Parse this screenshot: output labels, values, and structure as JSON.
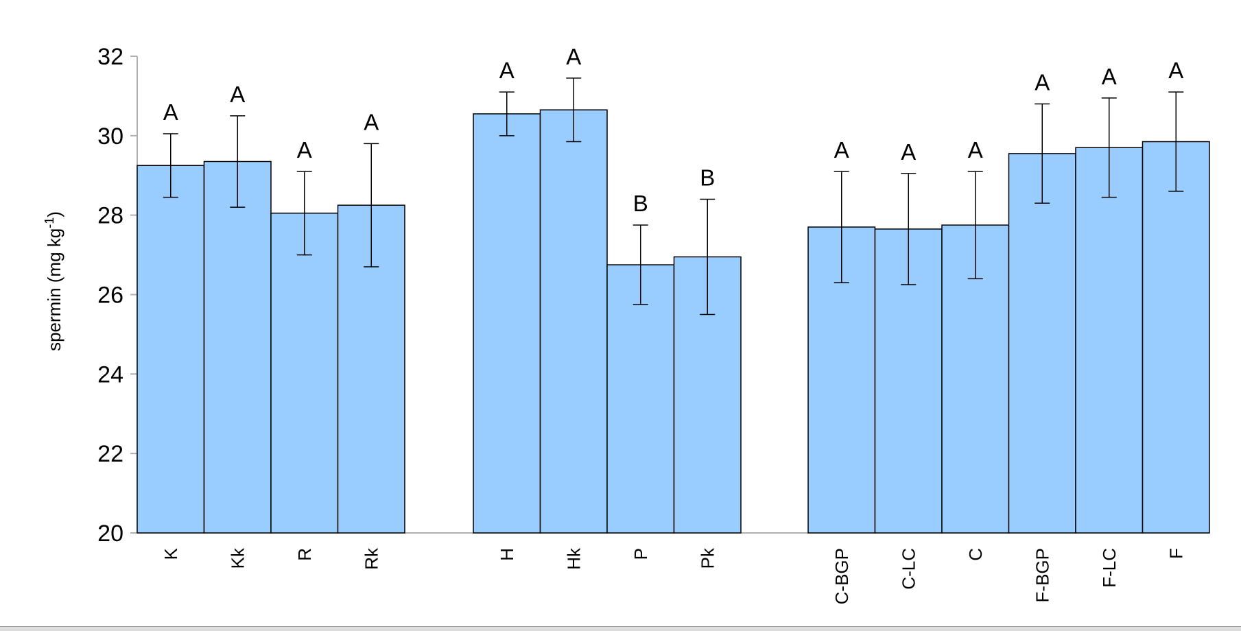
{
  "chart_data": {
    "type": "bar",
    "ylabel": "spermin (mg kg",
    "ylabel_sup": "-1",
    "ylabel_suffix": ")",
    "ylim": [
      20,
      32
    ],
    "yticks": [
      20,
      22,
      24,
      26,
      28,
      30,
      32
    ],
    "ytick_labels": [
      "20",
      "22",
      "24",
      "26",
      "28",
      "30",
      "32"
    ],
    "grid": false,
    "bar_color": "#99ccff",
    "groups": [
      {
        "categories": [
          "K",
          "Kk",
          "R",
          "Rk"
        ],
        "values": [
          29.25,
          29.35,
          28.05,
          28.25
        ],
        "errors": [
          0.8,
          1.15,
          1.05,
          1.55
        ],
        "letters": [
          "A",
          "A",
          "A",
          "A"
        ]
      },
      {
        "categories": [
          "H",
          "Hk",
          "P",
          "Pk"
        ],
        "values": [
          30.55,
          30.65,
          26.75,
          26.95
        ],
        "errors": [
          0.55,
          0.8,
          1.0,
          1.45
        ],
        "letters": [
          "A",
          "A",
          "B",
          "B"
        ]
      },
      {
        "categories": [
          "C-BGP",
          "C-LC",
          "C",
          "F-BGP",
          "F-LC",
          "F"
        ],
        "values": [
          27.7,
          27.65,
          27.75,
          29.55,
          29.7,
          29.85
        ],
        "errors": [
          1.4,
          1.4,
          1.35,
          1.25,
          1.25,
          1.25
        ],
        "letters": [
          "A",
          "A",
          "A",
          "A",
          "A",
          "A"
        ]
      }
    ]
  }
}
